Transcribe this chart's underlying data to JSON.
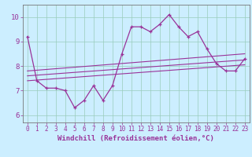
{
  "xlabel": "Windchill (Refroidissement éolien,°C)",
  "background_color": "#cceeff",
  "line_color": "#993399",
  "xlim": [
    -0.5,
    23.5
  ],
  "ylim": [
    5.7,
    10.5
  ],
  "yticks": [
    6,
    7,
    8,
    9,
    10
  ],
  "xticks": [
    0,
    1,
    2,
    3,
    4,
    5,
    6,
    7,
    8,
    9,
    10,
    11,
    12,
    13,
    14,
    15,
    16,
    17,
    18,
    19,
    20,
    21,
    22,
    23
  ],
  "main_x": [
    0,
    1,
    2,
    3,
    4,
    5,
    6,
    7,
    8,
    9,
    10,
    11,
    12,
    13,
    14,
    15,
    16,
    17,
    18,
    19,
    20,
    21,
    22,
    23
  ],
  "main_y": [
    9.2,
    7.4,
    7.1,
    7.1,
    7.0,
    6.3,
    6.6,
    7.2,
    6.6,
    7.2,
    8.5,
    9.6,
    9.6,
    9.4,
    9.7,
    10.1,
    9.6,
    9.2,
    9.4,
    8.7,
    8.1,
    7.8,
    7.8,
    8.3
  ],
  "reg_lines": [
    {
      "x": [
        0,
        23
      ],
      "y": [
        7.4,
        8.05
      ]
    },
    {
      "x": [
        0,
        23
      ],
      "y": [
        7.6,
        8.25
      ]
    },
    {
      "x": [
        0,
        23
      ],
      "y": [
        7.8,
        8.5
      ]
    }
  ],
  "grid_color": "#99ccbb",
  "tick_fontsize": 5.5,
  "label_fontsize": 6.5
}
